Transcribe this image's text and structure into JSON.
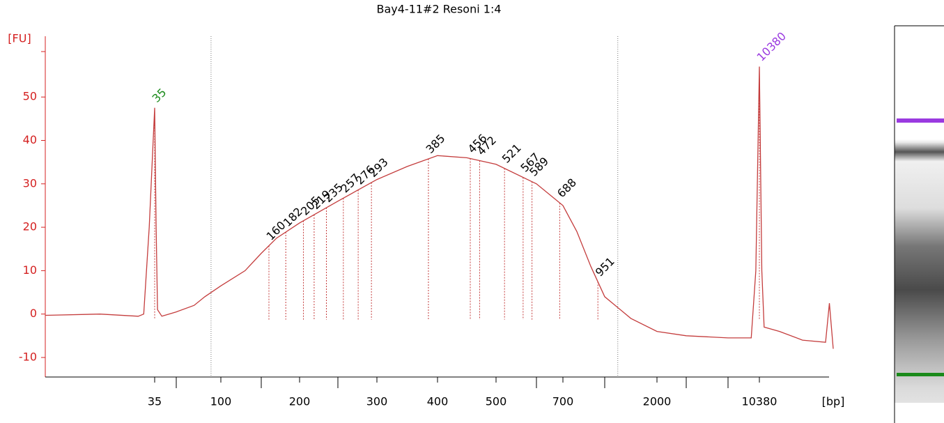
{
  "chart_data": {
    "type": "line",
    "title": "Bay4-11#2 Resoni 1:4",
    "ylabel": "[FU]",
    "xlabel": "[bp]",
    "color": "#c43c3c",
    "axis_color": "#d42020",
    "x": [
      15,
      25,
      32,
      33,
      34,
      35,
      36,
      37,
      40,
      50,
      70,
      82,
      100,
      130,
      150,
      170,
      200,
      250,
      300,
      350,
      400,
      450,
      500,
      600,
      700,
      800,
      900,
      1000,
      1500,
      2000,
      3000,
      7000,
      9500,
      10000,
      10380,
      10700,
      11000,
      13000,
      16000,
      19000,
      19500,
      20000
    ],
    "values": [
      -0.3,
      0,
      -0.5,
      0,
      20,
      47.5,
      20,
      1,
      -0.5,
      0.5,
      2,
      4,
      6.5,
      10,
      14,
      17.5,
      21,
      26,
      31,
      34,
      36.5,
      36,
      34.5,
      30,
      25,
      19,
      11,
      4,
      -1,
      -4,
      -5,
      -5.5,
      -5.5,
      10,
      57,
      10,
      -3,
      -4,
      -6,
      -6.5,
      2.5,
      -8
    ],
    "peaks": [
      35,
      160,
      182,
      205,
      219,
      235,
      257,
      276,
      293,
      385,
      456,
      472,
      521,
      567,
      589,
      688,
      951,
      10380
    ],
    "peak_colors": [
      "#1a8a1a",
      "#000000",
      "#000000",
      "#000000",
      "#000000",
      "#000000",
      "#000000",
      "#000000",
      "#000000",
      "#000000",
      "#000000",
      "#000000",
      "#000000",
      "#000000",
      "#000000",
      "#000000",
      "#000000",
      "#9a3ae0"
    ],
    "region_bounds": [
      89,
      1250
    ],
    "xlim": [
      15,
      20000
    ],
    "xticks": [
      35,
      100,
      200,
      300,
      400,
      500,
      700,
      2000,
      10380
    ],
    "xminorticks": [
      50,
      150,
      250,
      600,
      1000,
      3000,
      7000
    ],
    "ylim": [
      -14.5,
      64
    ],
    "yticks": [
      -10,
      0,
      10,
      20,
      30,
      40,
      50
    ]
  }
}
